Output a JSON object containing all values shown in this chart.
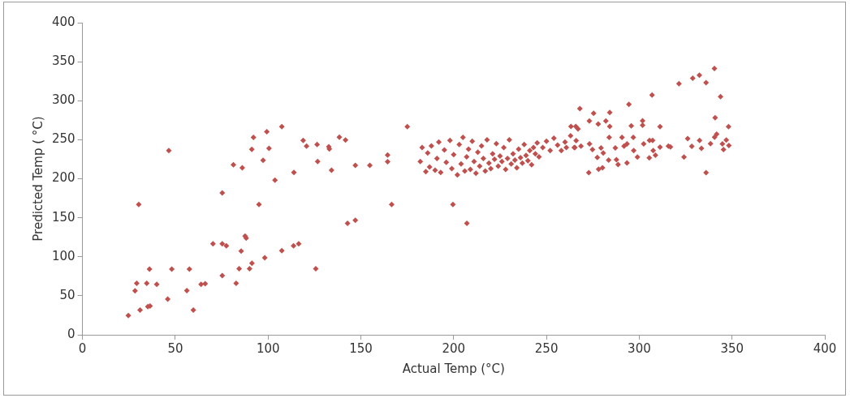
{
  "chart_data": {
    "type": "scatter",
    "xlabel": "Actual Temp (°C)",
    "ylabel": "Predicted Temp ( °C)",
    "marker": "diamond",
    "grid": false,
    "legend": false,
    "xlim": [
      0,
      400
    ],
    "xticks": [
      0,
      50,
      100,
      150,
      200,
      250,
      300,
      350,
      400
    ],
    "ylim": [
      0,
      400
    ],
    "yticks": [
      0,
      50,
      100,
      150,
      200,
      250,
      300,
      350,
      400
    ],
    "series": [
      {
        "color": "#c0504d",
        "x": [
          24.7,
          31.0,
          35.2,
          36.4,
          28.3,
          29.2,
          34.6,
          36.1,
          40.0,
          45.9,
          48.1,
          57.6,
          56.2,
          59.7,
          63.9,
          66.1,
          70.3,
          75.3,
          77.5,
          75.3,
          82.8,
          84.4,
          85.5,
          87.6,
          88.2,
          90,
          91.3,
          98.2,
          107.4,
          113.7,
          116.5,
          125.7,
          30.3,
          46.5,
          75.3,
          81.3,
          86.1,
          91.2,
          92.1,
          99.3,
          100.5,
          97.3,
          95.1,
          103.7,
          107.4,
          113.9,
          118.9,
          120.7,
          126.4,
          126.7,
          132.7,
          133,
          134.2,
          138.4,
          141.7,
          147,
          154.8,
          142.8,
          147,
          166.6,
          164.4,
          164.4,
          175,
          199.6,
          207.1,
          182,
          183,
          185,
          186,
          187,
          188,
          190,
          191,
          192,
          193,
          195,
          196,
          198,
          199,
          200,
          202,
          203,
          204,
          205,
          206,
          207,
          208,
          209,
          210,
          211,
          212,
          213,
          214,
          215,
          216,
          217,
          218,
          219,
          220,
          221,
          222,
          223,
          224,
          225,
          226,
          227,
          228,
          229,
          230,
          231,
          232,
          233,
          234,
          235,
          236,
          237,
          238,
          239,
          240,
          241,
          242,
          243,
          244,
          245,
          246,
          248,
          250,
          252,
          254,
          256,
          258,
          260,
          263,
          265,
          267,
          268,
          275.4,
          284.1,
          294.4,
          306.9,
          321.4,
          328.8,
          332.4,
          336,
          340.5,
          343.8,
          340.9,
          348.1,
          341.7,
          340.6,
          326.1,
          328.3,
          332.5,
          333.5,
          338.4,
          344.8,
          346.9,
          348.3,
          345.4,
          324.1,
          336,
          311.2,
          301.8,
          301.8,
          295.7,
          263.2,
          265.8,
          273.1,
          277.9,
          282,
          284.1,
          283.8,
          290.7,
          296.8,
          307.2,
          305.5,
          302.4,
          293.4,
          291.8,
          287.1,
          279.4,
          280.6,
          273.2,
          274.8,
          266,
          265.3,
          268.6,
          260.7,
          277.4,
          283.5,
          287.7,
          288.6,
          293.4,
          297,
          299,
          305.4,
          308.7,
          307.5,
          311.2,
          315.7,
          316.8,
          272.8,
          278.1,
          280.2
        ],
        "values": [
          24.8,
          31.6,
          36.2,
          37,
          56.4,
          65.9,
          65.9,
          84.2,
          64.7,
          45.7,
          84.2,
          84.2,
          56.7,
          31.6,
          64.7,
          65.5,
          116.6,
          116.6,
          113.9,
          75.8,
          65.9,
          84.6,
          107.4,
          126.5,
          123.8,
          84.6,
          91.8,
          98.7,
          107.8,
          113.9,
          116.6,
          84.6,
          166.9,
          236.2,
          181.7,
          217.9,
          214,
          237.7,
          252.9,
          260.2,
          238.9,
          223.6,
          166.9,
          198.1,
          266.7,
          208,
          249.1,
          241.9,
          243.8,
          222.1,
          241.1,
          238.1,
          211,
          253.3,
          249.5,
          217.1,
          217.1,
          142.9,
          146.7,
          166.9,
          230.4,
          221.7,
          266.7,
          166.9,
          142.9,
          222,
          240,
          209,
          233,
          215,
          242,
          211,
          226,
          247,
          208,
          237,
          221,
          249,
          213,
          231,
          205,
          244,
          219,
          253,
          210,
          228,
          238,
          212,
          248,
          222,
          207,
          234,
          216,
          242,
          226,
          210,
          250,
          220,
          213,
          232,
          225,
          245,
          216,
          229,
          222,
          240,
          212,
          226,
          250,
          219,
          232,
          224,
          214,
          238,
          227,
          220,
          244,
          230,
          223,
          236,
          218,
          240,
          232,
          246,
          228,
          240,
          248,
          236,
          252,
          243,
          236,
          247,
          255,
          240,
          264,
          290,
          283.8,
          284.9,
          295.2,
          307.4,
          321.9,
          328.8,
          332.6,
          323.1,
          341.4,
          305.1,
          278.1,
          266.7,
          257.1,
          253.3,
          251.4,
          241.5,
          249.1,
          238.9,
          245,
          244.6,
          249.5,
          242.6,
          237.3,
          227.8,
          207.7,
          266.7,
          274.3,
          268.6,
          267.8,
          267,
          267,
          273.9,
          270.1,
          273.9,
          267,
          252.9,
          252.9,
          252.9,
          249.1,
          249.1,
          244.6,
          244.6,
          241.9,
          239.6,
          239.6,
          233.1,
          244.6,
          237.3,
          248.8,
          240,
          241.9,
          240,
          227.4,
          224,
          224.3,
          218.3,
          220.2,
          236.2,
          227.8,
          226.7,
          230.1,
          236.2,
          240.4,
          241.9,
          240.8,
          207.7,
          212.2,
          214
        ]
      }
    ]
  }
}
